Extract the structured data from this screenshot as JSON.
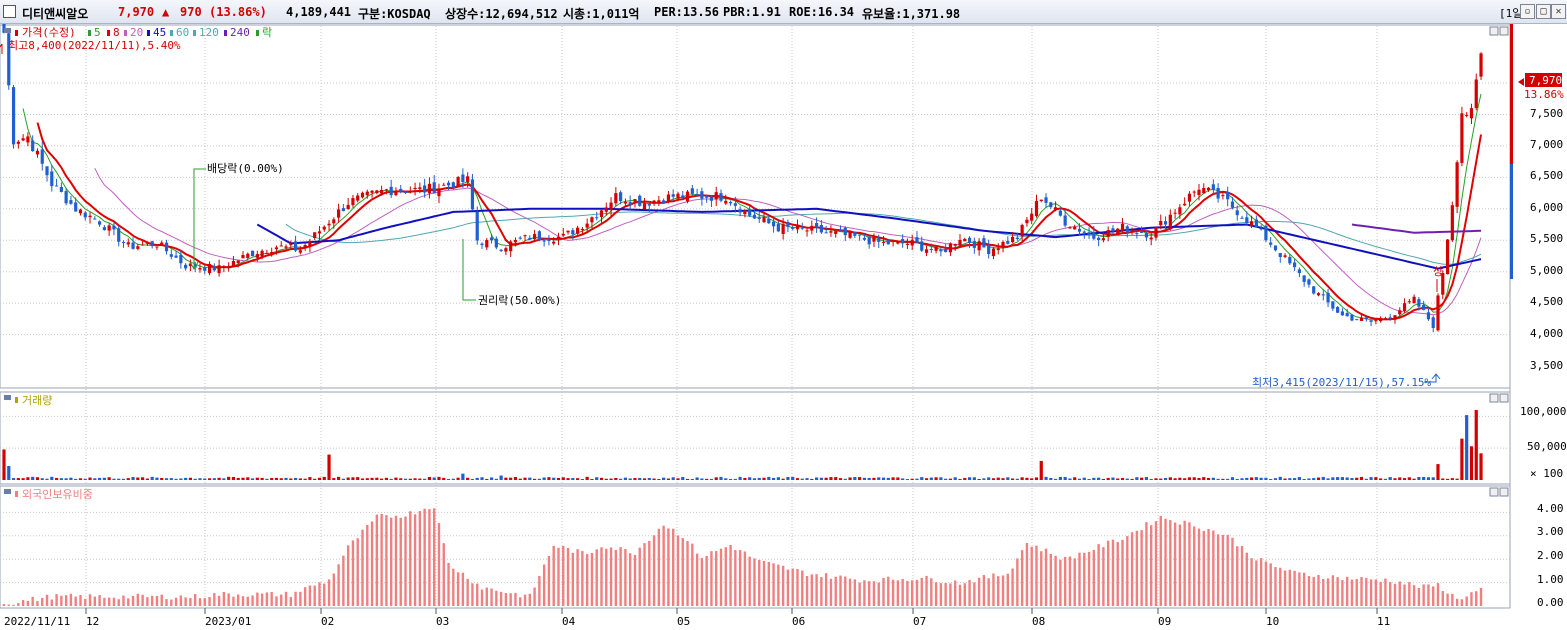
{
  "header": {
    "stock_name": "디티앤씨알오",
    "price": "7,970",
    "change_arrow": "▲",
    "change": "970",
    "change_pct": "(13.86%)",
    "volume": "4,189,441",
    "market": "구분:KOSDAQ",
    "shares": "상장수:12,694,512",
    "mcap": "시총:1,011억",
    "per": "PER:13.56",
    "pbr": "PBR:1.91",
    "roe": "ROE:16.34",
    "reserve": "유보율:1,371.98",
    "period": "[1일]"
  },
  "colors": {
    "up": "#d40000",
    "down": "#1f5fd0",
    "ma5": "#28a028",
    "ma8": "#e00000",
    "ma20": "#c060c0",
    "ma45": "#1010c0",
    "ma60": "#4fa8b0",
    "ma240": "#7020b0",
    "foreign": "#f08080",
    "grid": "#c8c8c8"
  },
  "price_panel": {
    "legend": [
      {
        "text": "가격(수정)",
        "color": "#d40000"
      },
      {
        "text": "5",
        "color": "#28a028"
      },
      {
        "text": "8",
        "color": "#e00000"
      },
      {
        "text": "20",
        "color": "#c060c0"
      },
      {
        "text": "45",
        "color": "#1010c0"
      },
      {
        "text": "60",
        "color": "#4fa8b0"
      },
      {
        "text": "120",
        "color": "#4fa8b0"
      },
      {
        "text": "240",
        "color": "#7020b0"
      },
      {
        "text": "락",
        "color": "#28a028"
      }
    ],
    "high_note": "최고8,400(2022/11/11),5.40%",
    "low_note": "최저3,415(2023/11/15),57.15%",
    "dividend_note": "배당락(0.00%)",
    "rights_note": "권리락(50.00%)",
    "upper_limit_mark": "상",
    "current_price_tag": "7,970",
    "current_pct_tag": "13.86%",
    "y_ticks": [
      "7,500",
      "7,000",
      "6,500",
      "6,000",
      "5,500",
      "5,000",
      "4,500",
      "4,000",
      "3,500"
    ]
  },
  "volume_panel": {
    "title": "거래량",
    "y_ticks": [
      "100,000",
      "50,000",
      "× 100"
    ]
  },
  "foreign_panel": {
    "title": "외국인보유비중",
    "y_ticks": [
      "4.00",
      "3.00",
      "2.00",
      "1.00",
      "0.00"
    ]
  },
  "x_labels": [
    "2022/11/11",
    "12",
    "2023/01",
    "02",
    "03",
    "04",
    "05",
    "06",
    "07",
    "08",
    "09",
    "10",
    "11"
  ],
  "chart_data": {
    "type": "candlestick",
    "title": "디티앤씨알오",
    "ylim": [
      3300,
      8400
    ],
    "price_anchors": [
      [
        0,
        8300
      ],
      [
        2,
        6600
      ],
      [
        5,
        6650
      ],
      [
        10,
        5900
      ],
      [
        15,
        5500
      ],
      [
        20,
        5300
      ],
      [
        26,
        4900
      ],
      [
        32,
        4950
      ],
      [
        38,
        4600
      ],
      [
        45,
        4550
      ],
      [
        52,
        4800
      ],
      [
        57,
        4900
      ],
      [
        62,
        4850
      ],
      [
        66,
        5150
      ],
      [
        72,
        5600
      ],
      [
        80,
        5800
      ],
      [
        88,
        5800
      ],
      [
        94,
        5900
      ],
      [
        97,
        5950
      ],
      [
        99,
        5000
      ],
      [
        104,
        4900
      ],
      [
        110,
        5050
      ],
      [
        117,
        5050
      ],
      [
        122,
        5300
      ],
      [
        128,
        5700
      ],
      [
        134,
        5600
      ],
      [
        140,
        5700
      ],
      [
        146,
        5700
      ],
      [
        151,
        5700
      ],
      [
        156,
        5400
      ],
      [
        162,
        5200
      ],
      [
        170,
        5150
      ],
      [
        178,
        5050
      ],
      [
        184,
        4950
      ],
      [
        190,
        4950
      ],
      [
        196,
        4800
      ],
      [
        200,
        5050
      ],
      [
        206,
        4850
      ],
      [
        212,
        5050
      ],
      [
        217,
        5700
      ],
      [
        222,
        5300
      ],
      [
        228,
        5050
      ],
      [
        234,
        5200
      ],
      [
        240,
        5100
      ],
      [
        244,
        5400
      ],
      [
        250,
        5850
      ],
      [
        256,
        5600
      ],
      [
        262,
        5200
      ],
      [
        268,
        4700
      ],
      [
        274,
        4200
      ],
      [
        280,
        3800
      ],
      [
        286,
        3700
      ],
      [
        290,
        3800
      ],
      [
        295,
        4050
      ],
      [
        299,
        3650
      ],
      [
        301,
        4500
      ],
      [
        303,
        5600
      ],
      [
        305,
        7050
      ],
      [
        307,
        7000
      ],
      [
        309,
        7970
      ]
    ],
    "ma45_anchors": [
      [
        53,
        5250
      ],
      [
        60,
        4950
      ],
      [
        70,
        5000
      ],
      [
        80,
        5200
      ],
      [
        94,
        5450
      ],
      [
        110,
        5500
      ],
      [
        126,
        5500
      ],
      [
        146,
        5450
      ],
      [
        170,
        5500
      ],
      [
        186,
        5350
      ],
      [
        205,
        5150
      ],
      [
        220,
        5050
      ],
      [
        240,
        5200
      ],
      [
        260,
        5250
      ],
      [
        280,
        4900
      ],
      [
        300,
        4550
      ],
      [
        309,
        4700
      ]
    ],
    "ma240_anchors": [
      [
        282,
        5250
      ],
      [
        295,
        5120
      ],
      [
        309,
        5150
      ]
    ],
    "volume_scale_max": 110000,
    "foreign_anchors": [
      [
        0,
        0.1
      ],
      [
        10,
        0.4
      ],
      [
        40,
        0.4
      ],
      [
        45,
        0.5
      ],
      [
        60,
        0.5
      ],
      [
        65,
        0.9
      ],
      [
        68,
        1.1
      ],
      [
        72,
        2.5
      ],
      [
        78,
        3.8
      ],
      [
        84,
        3.9
      ],
      [
        90,
        4.3
      ],
      [
        93,
        1.8
      ],
      [
        100,
        0.8
      ],
      [
        110,
        0.4
      ],
      [
        115,
        2.6
      ],
      [
        122,
        2.2
      ],
      [
        125,
        2.6
      ],
      [
        132,
        2.3
      ],
      [
        138,
        3.5
      ],
      [
        142,
        3.0
      ],
      [
        146,
        2.1
      ],
      [
        152,
        2.6
      ],
      [
        158,
        1.9
      ],
      [
        168,
        1.4
      ],
      [
        180,
        1.1
      ],
      [
        192,
        1.2
      ],
      [
        200,
        1.0
      ],
      [
        210,
        1.4
      ],
      [
        214,
        2.7
      ],
      [
        222,
        2.0
      ],
      [
        234,
        2.9
      ],
      [
        242,
        3.8
      ],
      [
        250,
        3.4
      ],
      [
        256,
        3.0
      ],
      [
        262,
        2.0
      ],
      [
        270,
        1.4
      ],
      [
        280,
        1.2
      ],
      [
        290,
        1.1
      ],
      [
        297,
        0.8
      ],
      [
        300,
        0.9
      ],
      [
        304,
        0.3
      ],
      [
        309,
        0.7
      ]
    ]
  }
}
